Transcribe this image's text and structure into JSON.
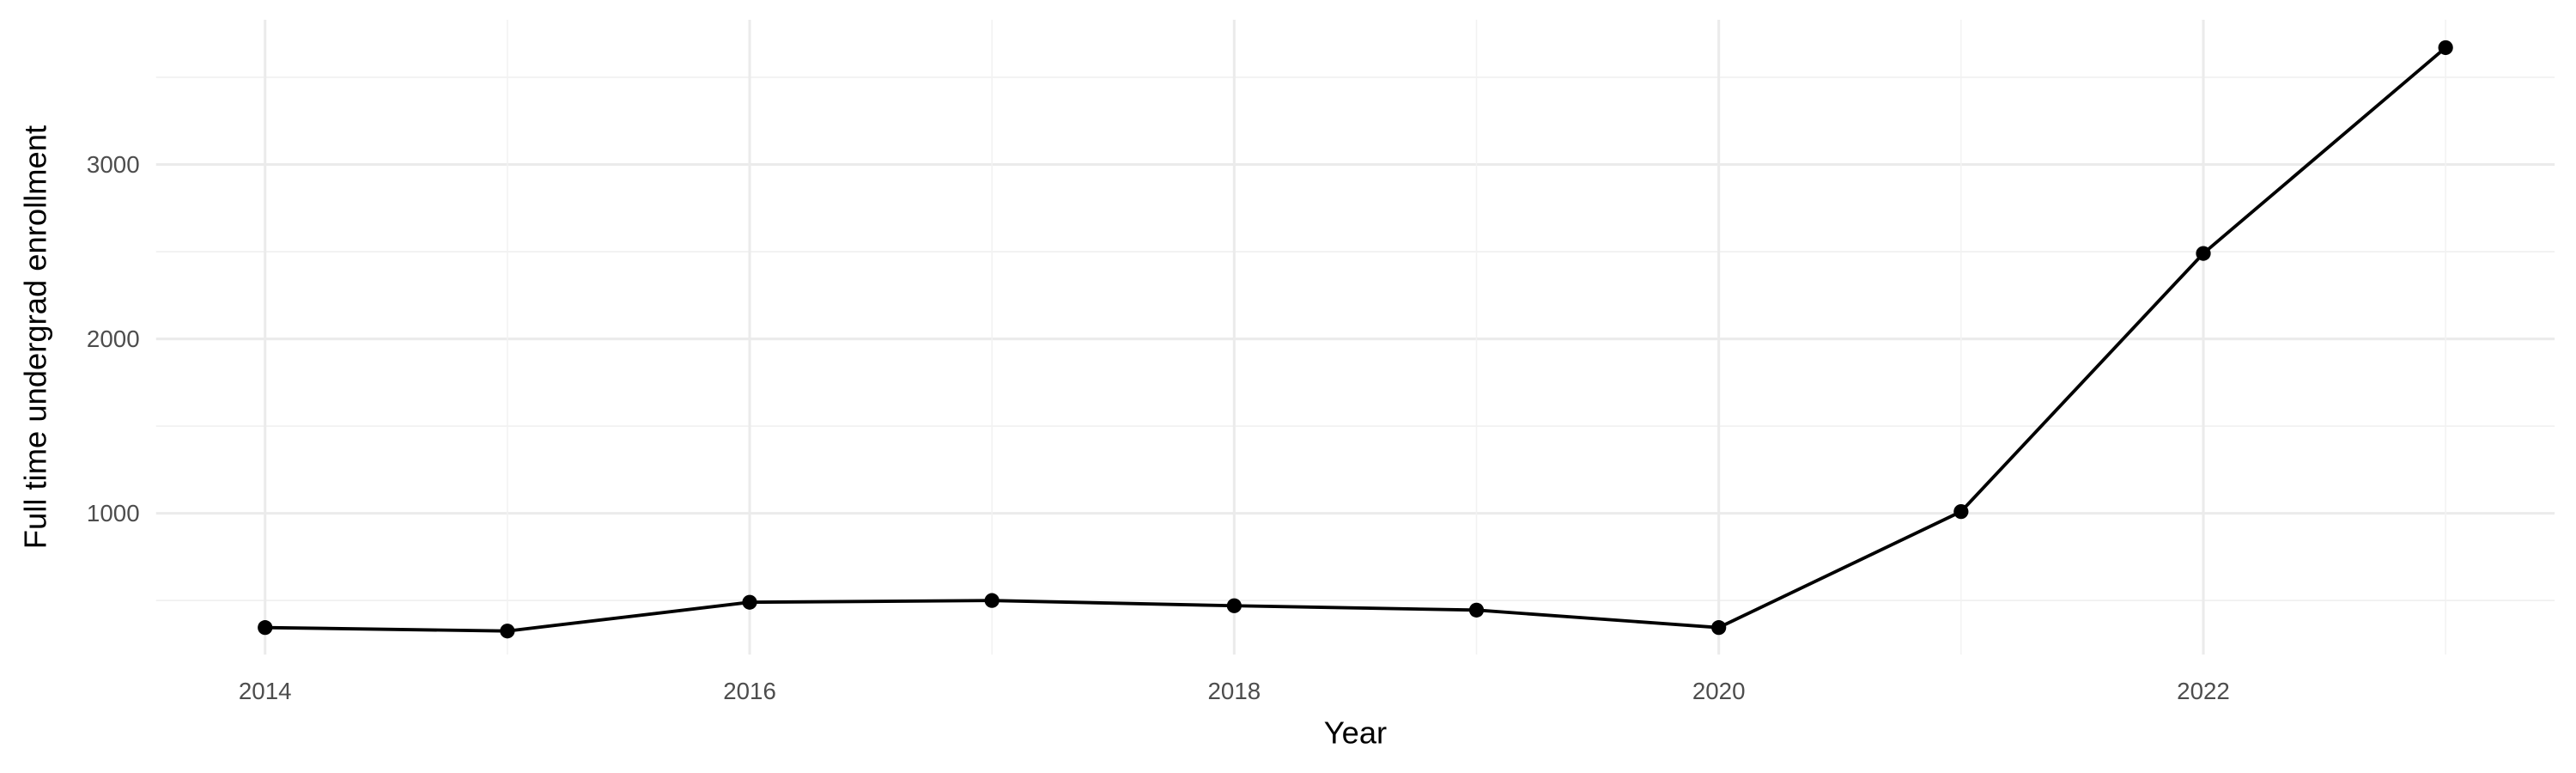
{
  "chart_data": {
    "type": "line",
    "title": "",
    "xlabel": "Year",
    "ylabel": "Full time undergrad enrollment",
    "x": [
      2014,
      2015,
      2016,
      2017,
      2018,
      2019,
      2020,
      2021,
      2022,
      2023
    ],
    "series": [
      {
        "values": [
          345,
          325,
          490,
          500,
          470,
          445,
          345,
          1010,
          2490,
          3670
        ],
        "color": "#000000"
      }
    ],
    "xlim": [
      2013.55,
      2023.45
    ],
    "ylim": [
      190,
      3830
    ],
    "x_ticks": [
      "2014",
      "2016",
      "2018",
      "2020",
      "2022"
    ],
    "y_ticks": [
      "1000",
      "2000",
      "3000"
    ],
    "grid": true,
    "markers": true,
    "theme": "minimal"
  }
}
